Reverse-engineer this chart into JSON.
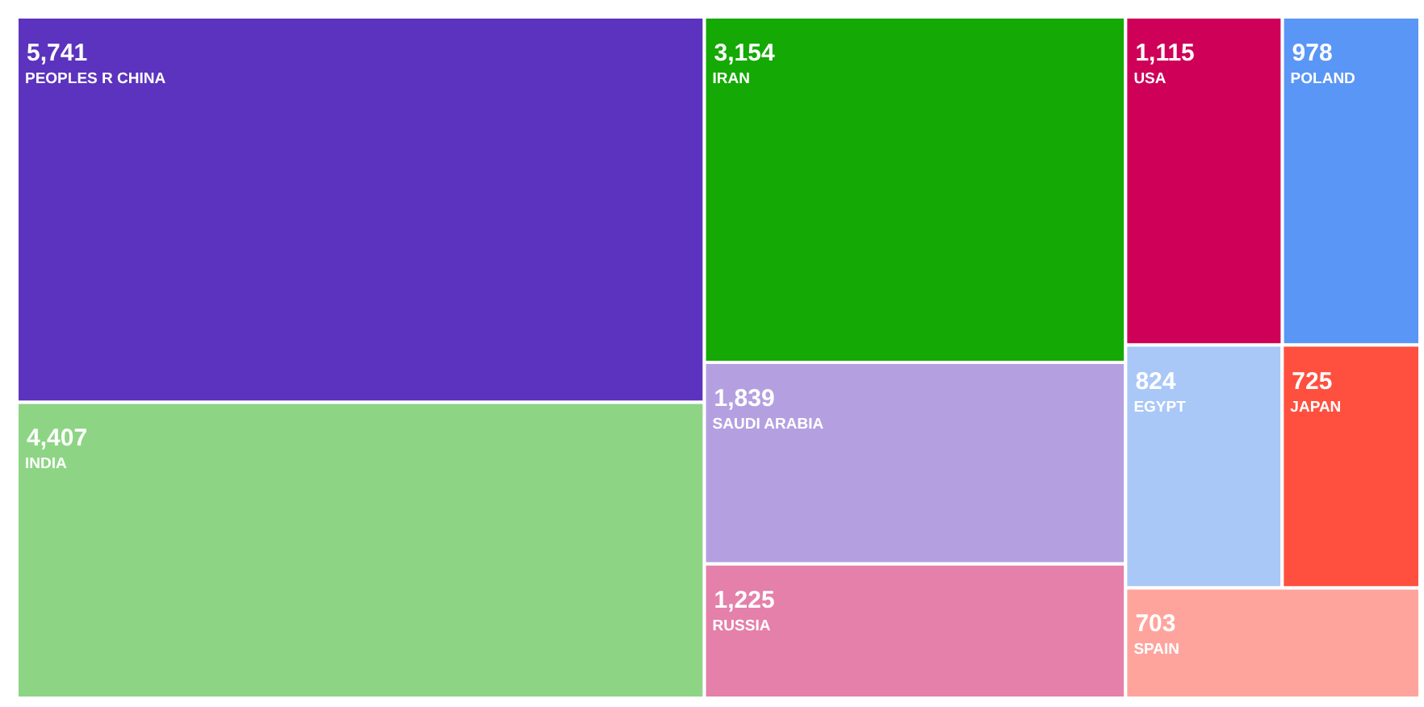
{
  "chart_data": {
    "type": "other",
    "categories": [
      "PEOPLES R CHINA",
      "INDIA",
      "IRAN",
      "SAUDI ARABIA",
      "RUSSIA",
      "USA",
      "POLAND",
      "EGYPT",
      "JAPAN",
      "SPAIN"
    ],
    "values": [
      5741,
      4407,
      3154,
      1839,
      1225,
      1115,
      978,
      824,
      725,
      703
    ],
    "value_labels": [
      "5,741",
      "4,407",
      "3,154",
      "1,839",
      "1,225",
      "1,115",
      "978",
      "824",
      "725",
      "703"
    ],
    "colors": [
      "#5c33be",
      "#8dd584",
      "#14a905",
      "#b4a0e0",
      "#e480aa",
      "#ce0058",
      "#5a96f5",
      "#a9c8f8",
      "#ff4f3e",
      "#ffa49d"
    ]
  }
}
